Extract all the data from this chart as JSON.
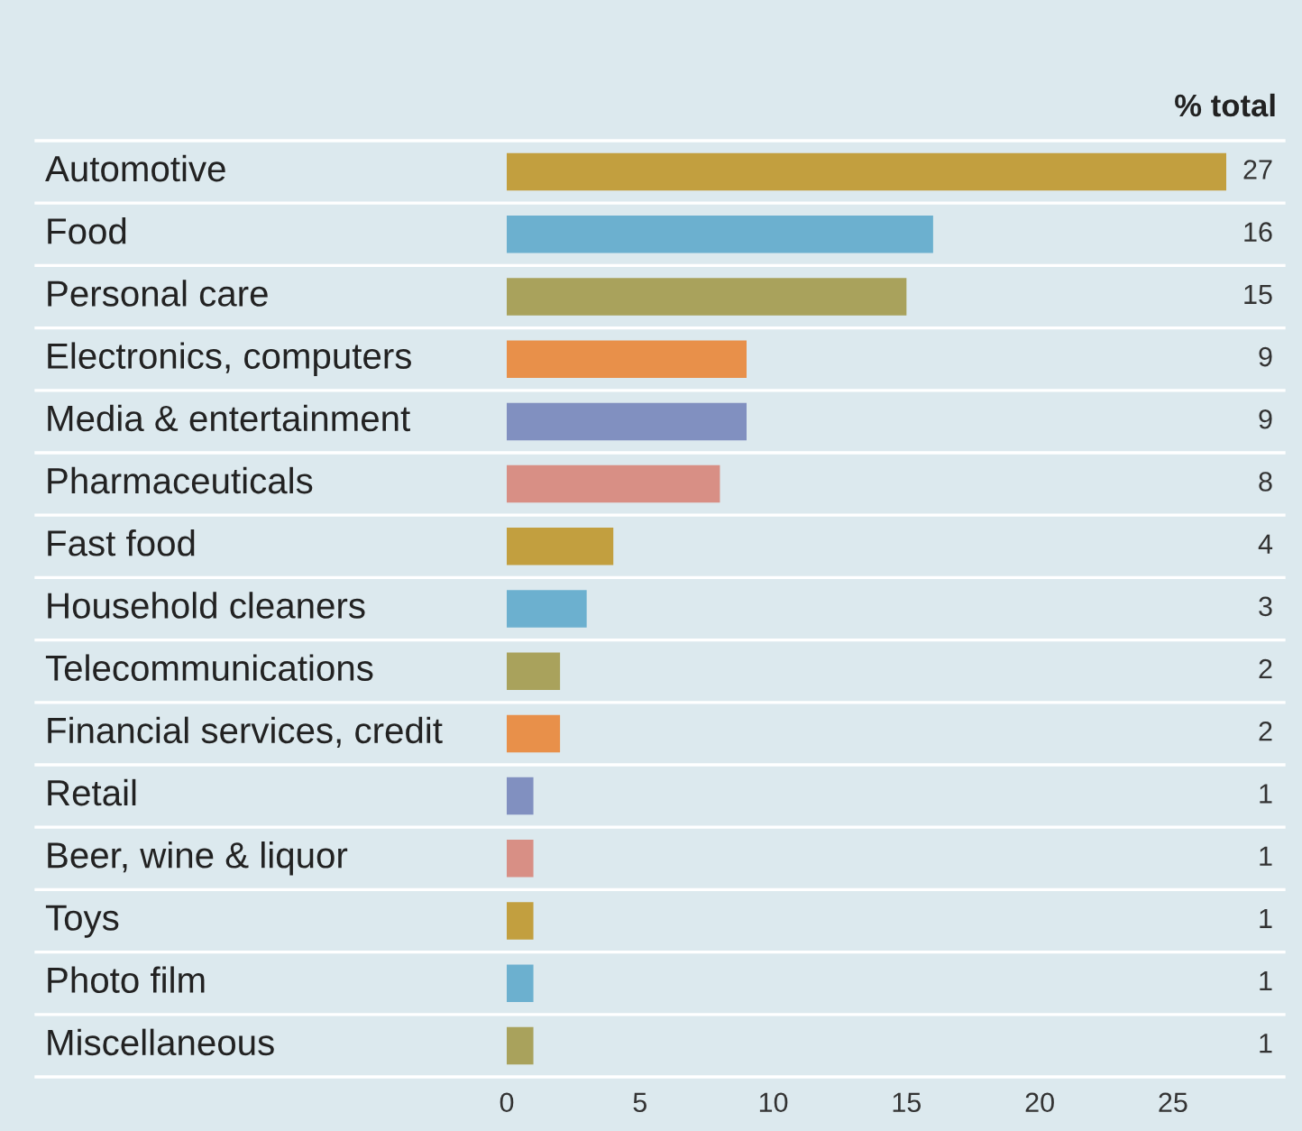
{
  "chart_data": {
    "type": "bar",
    "orientation": "horizontal",
    "title": "% total",
    "categories": [
      "Automotive",
      "Food",
      "Personal care",
      "Electronics, computers",
      "Media & entertainment",
      "Pharmaceuticals",
      "Fast food",
      "Household cleaners",
      "Telecommunications",
      "Financial services, credit",
      "Retail",
      "Beer, wine & liquor",
      "Toys",
      "Photo film",
      "Miscellaneous"
    ],
    "values": [
      27,
      16,
      15,
      9,
      9,
      8,
      4,
      3,
      2,
      2,
      1,
      1,
      1,
      1,
      1
    ],
    "colors": [
      "#c29f3f",
      "#6cb0cf",
      "#a9a25c",
      "#e8904a",
      "#8190c0",
      "#d88f85",
      "#c29f3f",
      "#6cb0cf",
      "#a9a25c",
      "#e8904a",
      "#8190c0",
      "#d88f85",
      "#c29f3f",
      "#6cb0cf",
      "#a9a25c"
    ],
    "xlim": [
      0,
      27
    ],
    "xticks": [
      0,
      5,
      10,
      15,
      20,
      25
    ],
    "data_labels": true,
    "grid": false,
    "legend": false
  }
}
